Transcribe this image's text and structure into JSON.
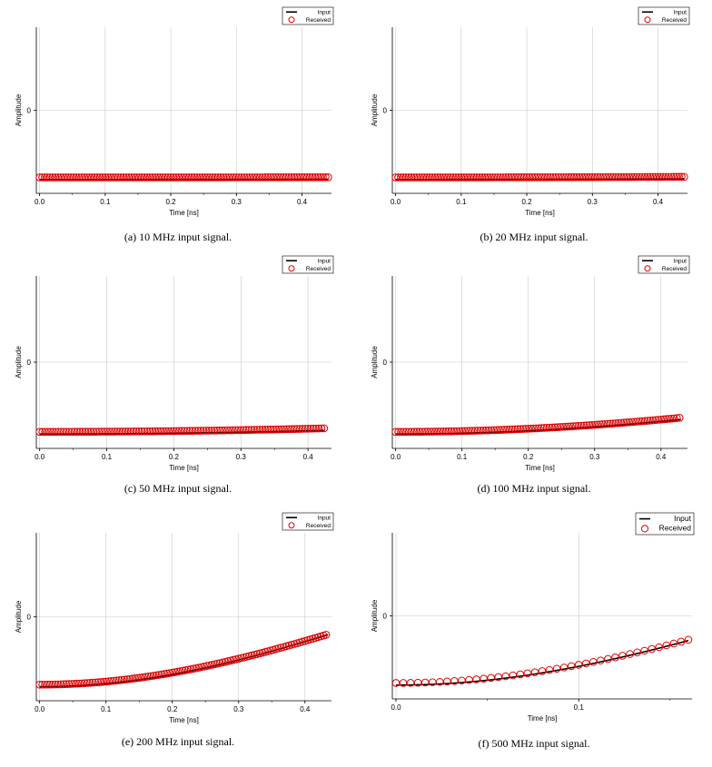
{
  "chart_data": [
    {
      "id": "a",
      "type": "line",
      "caption": "(a)  10 MHz input signal.",
      "frequency_mhz": 10,
      "xlabel": "Time [ns]",
      "ylabel": "Amplitude",
      "x_ticks": [
        "0.0",
        "0.1",
        "0.2",
        "0.3",
        "0.4"
      ],
      "y_ticks": [
        "0"
      ],
      "xlim": [
        -0.005,
        0.445
      ],
      "ylim": [
        -1.2,
        1.2
      ],
      "grid": true,
      "legend_position": "top-right",
      "series": [
        {
          "name": "Input",
          "kind": "line",
          "color": "#000000",
          "amplitude": 1,
          "t_end": 0.44
        },
        {
          "name": "Received",
          "kind": "circle-markers",
          "color": "#e00000",
          "amplitude": 0.97,
          "t_start": 0.0,
          "t_end": 0.44,
          "sample_step": 0.004
        }
      ]
    },
    {
      "id": "b",
      "type": "line",
      "caption": "(b)  20 MHz input signal.",
      "frequency_mhz": 20,
      "xlabel": "Time [ns]",
      "ylabel": "Amplitude",
      "x_ticks": [
        "0.0",
        "0.1",
        "0.2",
        "0.3",
        "0.4"
      ],
      "y_ticks": [
        "0"
      ],
      "xlim": [
        -0.005,
        0.445
      ],
      "ylim": [
        -1.2,
        1.2
      ],
      "grid": true,
      "legend_position": "top-right",
      "series": [
        {
          "name": "Input",
          "kind": "line",
          "color": "#000000",
          "amplitude": 1,
          "t_end": 0.44
        },
        {
          "name": "Received",
          "kind": "circle-markers",
          "color": "#e00000",
          "amplitude": 0.97,
          "t_start": 0.0,
          "t_end": 0.44,
          "sample_step": 0.004
        }
      ]
    },
    {
      "id": "c",
      "type": "line",
      "caption": "(c)  50 MHz input signal.",
      "frequency_mhz": 50,
      "xlabel": "Time [ns]",
      "ylabel": "Amplitude",
      "x_ticks": [
        "0.0",
        "0.1",
        "0.2",
        "0.3",
        "0.4"
      ],
      "y_ticks": [
        "0"
      ],
      "xlim": [
        -0.005,
        0.435
      ],
      "ylim": [
        -1.2,
        1.2
      ],
      "grid": true,
      "legend_position": "top-right",
      "series": [
        {
          "name": "Input",
          "kind": "line",
          "color": "#000000",
          "amplitude": 1,
          "t_end": 0.425
        },
        {
          "name": "Received",
          "kind": "circle-markers",
          "color": "#e00000",
          "amplitude": 0.97,
          "t_start": 0.0,
          "t_end": 0.425,
          "sample_step": 0.004
        }
      ]
    },
    {
      "id": "d",
      "type": "line",
      "caption": "(d)  100 MHz input signal.",
      "frequency_mhz": 100,
      "xlabel": "Time [ns]",
      "ylabel": "Amplitude",
      "x_ticks": [
        "0.0",
        "0.1",
        "0.2",
        "0.3",
        "0.4"
      ],
      "y_ticks": [
        "0"
      ],
      "xlim": [
        -0.005,
        0.44
      ],
      "ylim": [
        -1.2,
        1.2
      ],
      "grid": true,
      "legend_position": "top-right",
      "series": [
        {
          "name": "Input",
          "kind": "line",
          "color": "#000000",
          "amplitude": 1,
          "t_end": 0.43
        },
        {
          "name": "Received",
          "kind": "circle-markers",
          "color": "#e00000",
          "amplitude": 0.97,
          "t_start": 0.0,
          "t_end": 0.43,
          "sample_step": 0.004
        }
      ]
    },
    {
      "id": "e",
      "type": "line",
      "caption": "(e)  200 MHz input signal.",
      "frequency_mhz": 200,
      "xlabel": "Time [ns]",
      "ylabel": "Amplitude",
      "x_ticks": [
        "0.0",
        "0.1",
        "0.2",
        "0.3",
        "0.4"
      ],
      "y_ticks": [
        "0"
      ],
      "xlim": [
        -0.005,
        0.44
      ],
      "ylim": [
        -1.2,
        1.2
      ],
      "grid": true,
      "legend_position": "top-right",
      "series": [
        {
          "name": "Input",
          "kind": "line",
          "color": "#000000",
          "amplitude": 1,
          "t_end": 0.435
        },
        {
          "name": "Received",
          "kind": "circle-markers",
          "color": "#e00000",
          "amplitude": 0.97,
          "t_start": 0.0,
          "t_end": 0.435,
          "sample_step": 0.004
        }
      ]
    },
    {
      "id": "f",
      "type": "line",
      "caption": "(f)  500 MHz input signal.",
      "frequency_mhz": 500,
      "xlabel": "Time [ns]",
      "ylabel": "Amplitude",
      "x_ticks": [
        "0.0",
        "0.1"
      ],
      "y_ticks": [
        "0"
      ],
      "xlim": [
        -0.002,
        0.162
      ],
      "ylim": [
        -1.2,
        1.2
      ],
      "grid": true,
      "legend_position": "top-right",
      "series": [
        {
          "name": "Input",
          "kind": "line",
          "color": "#000000",
          "amplitude": 1,
          "t_end": 0.16
        },
        {
          "name": "Received",
          "kind": "circle-markers",
          "color": "#e00000",
          "amplitude": 0.97,
          "t_start": 0.0,
          "t_end": 0.16,
          "sample_step": 0.004
        }
      ]
    }
  ]
}
